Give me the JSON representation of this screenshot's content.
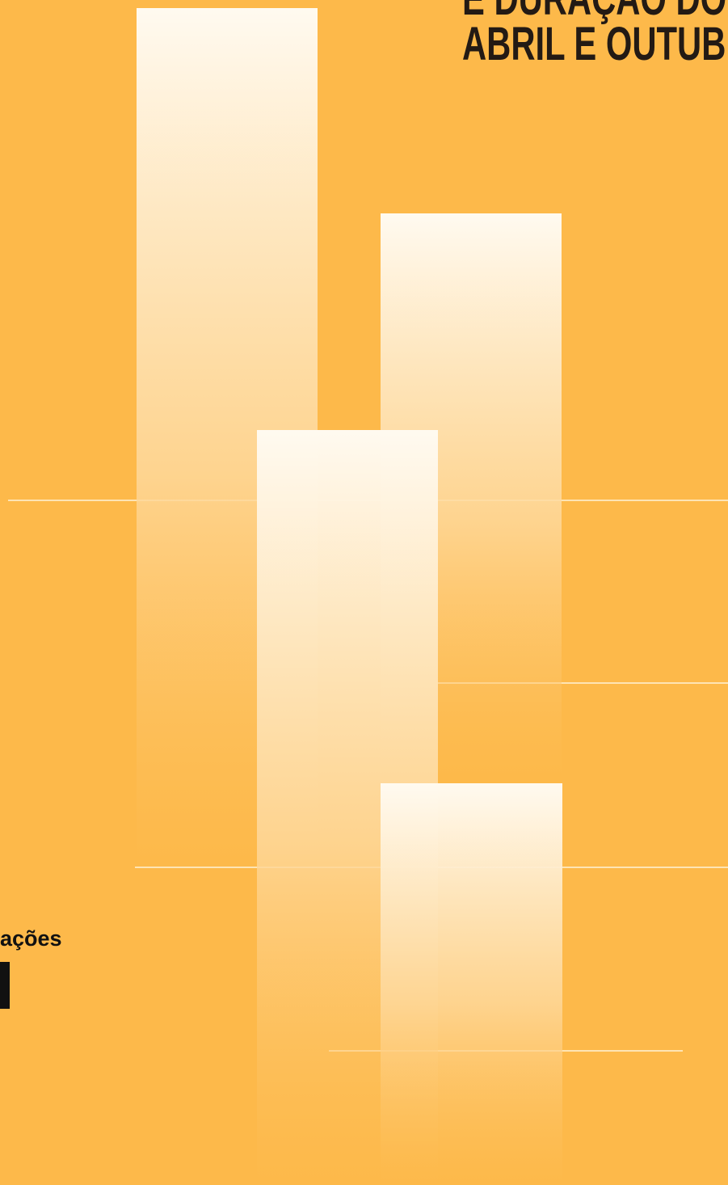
{
  "header": {
    "title_line1": "E DURAÇÃO DO",
    "title_line2": "ABRIL E OUTUB"
  },
  "label": "ações"
}
